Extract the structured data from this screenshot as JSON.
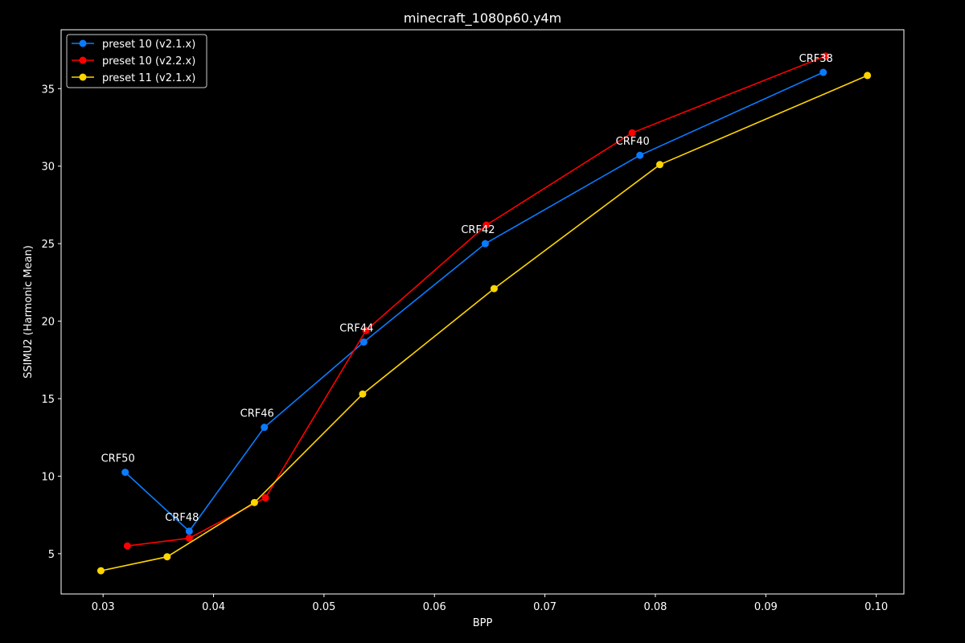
{
  "chart_data": {
    "type": "line",
    "title": "minecraft_1080p60.y4m",
    "xlabel": "BPP",
    "ylabel": "SSIMU2 (Harmonic Mean)",
    "xlim": [
      0.0262,
      0.1025
    ],
    "ylim": [
      2.4,
      38.8
    ],
    "xticks": [
      0.03,
      0.04,
      0.05,
      0.06,
      0.07,
      0.08,
      0.09,
      0.1
    ],
    "xtick_labels": [
      "0.03",
      "0.04",
      "0.05",
      "0.06",
      "0.07",
      "0.08",
      "0.09",
      "0.10"
    ],
    "yticks": [
      5,
      10,
      15,
      20,
      25,
      30,
      35
    ],
    "ytick_labels": [
      "5",
      "10",
      "15",
      "20",
      "25",
      "30",
      "35"
    ],
    "grid": false,
    "legend_position": "top-left",
    "series": [
      {
        "name": "preset 10 (v2.1.x)",
        "color": "#0a7bff",
        "x": [
          0.032,
          0.0378,
          0.0446,
          0.0536,
          0.0646,
          0.0786,
          0.0952
        ],
        "y": [
          10.25,
          6.45,
          13.15,
          18.65,
          25.0,
          30.7,
          36.05
        ]
      },
      {
        "name": "preset 10 (v2.2.x)",
        "color": "#ff0000",
        "x": [
          0.0322,
          0.0378,
          0.0447,
          0.0538,
          0.0647,
          0.0779,
          0.0954
        ],
        "y": [
          5.5,
          6.0,
          8.6,
          19.4,
          26.2,
          32.15,
          37.1
        ]
      },
      {
        "name": "preset 11 (v2.1.x)",
        "color": "#ffd500",
        "x": [
          0.0298,
          0.0358,
          0.0437,
          0.0535,
          0.0654,
          0.0804,
          0.0992
        ],
        "y": [
          3.9,
          4.8,
          8.3,
          15.3,
          22.1,
          30.1,
          35.85
        ]
      }
    ],
    "annotations": [
      {
        "text": "CRF50",
        "x": 0.032,
        "y": 10.25
      },
      {
        "text": "CRF48",
        "x": 0.0378,
        "y": 6.45
      },
      {
        "text": "CRF46",
        "x": 0.0446,
        "y": 13.15
      },
      {
        "text": "CRF44",
        "x": 0.0536,
        "y": 18.65
      },
      {
        "text": "CRF42",
        "x": 0.0646,
        "y": 25.0
      },
      {
        "text": "CRF40",
        "x": 0.0786,
        "y": 30.7
      },
      {
        "text": "CRF38",
        "x": 0.0952,
        "y": 36.05
      }
    ]
  }
}
